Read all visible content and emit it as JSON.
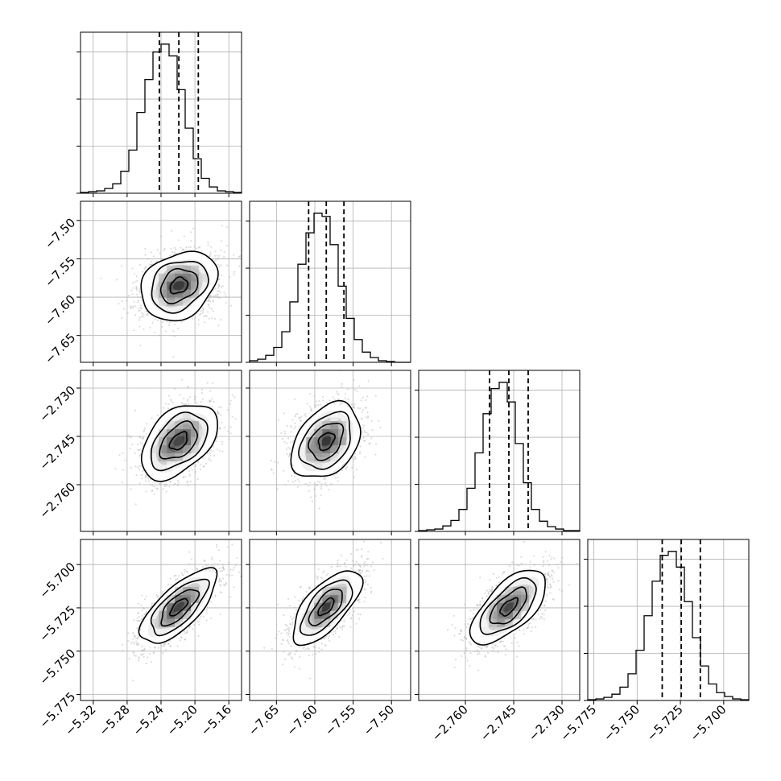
{
  "chart_data": {
    "type": "corner",
    "n_params": 4,
    "grid": true,
    "colors": {
      "hist": "#000000",
      "scatter": "#b3b3b3",
      "grid": "#b0b0b0",
      "contour": "#000000"
    },
    "parameters": [
      {
        "range": [
          -5.335,
          -5.145
        ],
        "ticks": [
          -5.32,
          -5.28,
          -5.24,
          -5.2,
          -5.16
        ],
        "tick_labels": [
          "−5.32",
          "−5.28",
          "−5.24",
          "−5.20",
          "−5.16"
        ],
        "quantiles": [
          -5.242,
          -5.219,
          -5.196
        ],
        "hist_counts": [
          1,
          2,
          3,
          6,
          12,
          28,
          55,
          103,
          145,
          180,
          190,
          175,
          132,
          83,
          44,
          19,
          8,
          3,
          2,
          1
        ]
      },
      {
        "range": [
          -7.685,
          -7.475
        ],
        "ticks": [
          -7.65,
          -7.6,
          -7.55,
          -7.5
        ],
        "tick_labels": [
          "−7.65",
          "−7.60",
          "−7.55",
          "−7.50"
        ],
        "quantiles": [
          -7.608,
          -7.585,
          -7.562
        ],
        "hist_counts": [
          2,
          4,
          9,
          19,
          39,
          77,
          125,
          165,
          190,
          186,
          150,
          97,
          56,
          29,
          13,
          6,
          2,
          1,
          0,
          0
        ]
      },
      {
        "range": [
          -2.7745,
          -2.7245
        ],
        "ticks": [
          -2.76,
          -2.745,
          -2.73
        ],
        "tick_labels": [
          "−2.760",
          "−2.745",
          "−2.730"
        ],
        "quantiles": [
          -2.7525,
          -2.7465,
          -2.7405
        ],
        "hist_counts": [
          1,
          2,
          3,
          7,
          14,
          28,
          55,
          100,
          150,
          182,
          190,
          165,
          112,
          62,
          28,
          13,
          6,
          3,
          1,
          1
        ]
      },
      {
        "range": [
          -5.7785,
          -5.6855
        ],
        "ticks": [
          -5.775,
          -5.75,
          -5.725,
          -5.7
        ],
        "tick_labels": [
          "−5.775",
          "−5.750",
          "−5.725",
          "−5.700"
        ],
        "quantiles": [
          -5.7355,
          -5.7245,
          -5.7135
        ],
        "hist_counts": [
          1,
          2,
          4,
          8,
          17,
          34,
          64,
          108,
          152,
          185,
          190,
          170,
          126,
          80,
          44,
          21,
          10,
          5,
          2,
          1
        ]
      }
    ],
    "pairs": [
      {
        "x": 0,
        "y": 1,
        "rho": 0.25
      },
      {
        "x": 0,
        "y": 2,
        "rho": 0.45
      },
      {
        "x": 1,
        "y": 2,
        "rho": 0.35
      },
      {
        "x": 0,
        "y": 3,
        "rho": 0.72
      },
      {
        "x": 1,
        "y": 3,
        "rho": 0.68
      },
      {
        "x": 2,
        "y": 3,
        "rho": 0.65
      }
    ]
  }
}
